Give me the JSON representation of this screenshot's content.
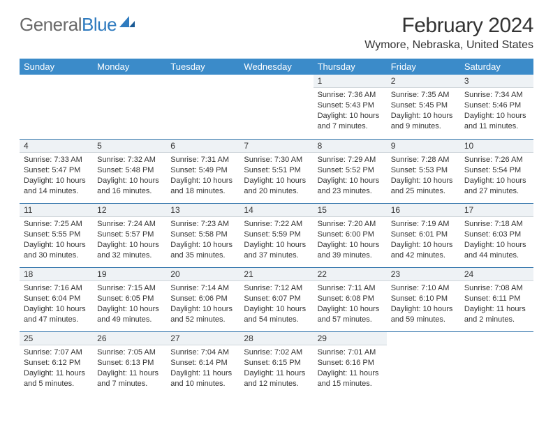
{
  "logo": {
    "gray": "General",
    "blue": "Blue"
  },
  "title": "February 2024",
  "subtitle": "Wymore, Nebraska, United States",
  "columns": [
    "Sunday",
    "Monday",
    "Tuesday",
    "Wednesday",
    "Thursday",
    "Friday",
    "Saturday"
  ],
  "colors": {
    "header_bg": "#3b8bc9",
    "header_text": "#ffffff",
    "daynum_bg": "#eef2f5",
    "rule": "#2a6fa8",
    "logo_gray": "#6a6a6a",
    "logo_blue": "#2f7bbf",
    "text": "#333333",
    "background": "#ffffff"
  },
  "weeks": [
    [
      null,
      null,
      null,
      null,
      {
        "n": "1",
        "sr": "7:36 AM",
        "ss": "5:43 PM",
        "dl1": "10 hours",
        "dl2": "and 7 minutes."
      },
      {
        "n": "2",
        "sr": "7:35 AM",
        "ss": "5:45 PM",
        "dl1": "10 hours",
        "dl2": "and 9 minutes."
      },
      {
        "n": "3",
        "sr": "7:34 AM",
        "ss": "5:46 PM",
        "dl1": "10 hours",
        "dl2": "and 11 minutes."
      }
    ],
    [
      {
        "n": "4",
        "sr": "7:33 AM",
        "ss": "5:47 PM",
        "dl1": "10 hours",
        "dl2": "and 14 minutes."
      },
      {
        "n": "5",
        "sr": "7:32 AM",
        "ss": "5:48 PM",
        "dl1": "10 hours",
        "dl2": "and 16 minutes."
      },
      {
        "n": "6",
        "sr": "7:31 AM",
        "ss": "5:49 PM",
        "dl1": "10 hours",
        "dl2": "and 18 minutes."
      },
      {
        "n": "7",
        "sr": "7:30 AM",
        "ss": "5:51 PM",
        "dl1": "10 hours",
        "dl2": "and 20 minutes."
      },
      {
        "n": "8",
        "sr": "7:29 AM",
        "ss": "5:52 PM",
        "dl1": "10 hours",
        "dl2": "and 23 minutes."
      },
      {
        "n": "9",
        "sr": "7:28 AM",
        "ss": "5:53 PM",
        "dl1": "10 hours",
        "dl2": "and 25 minutes."
      },
      {
        "n": "10",
        "sr": "7:26 AM",
        "ss": "5:54 PM",
        "dl1": "10 hours",
        "dl2": "and 27 minutes."
      }
    ],
    [
      {
        "n": "11",
        "sr": "7:25 AM",
        "ss": "5:55 PM",
        "dl1": "10 hours",
        "dl2": "and 30 minutes."
      },
      {
        "n": "12",
        "sr": "7:24 AM",
        "ss": "5:57 PM",
        "dl1": "10 hours",
        "dl2": "and 32 minutes."
      },
      {
        "n": "13",
        "sr": "7:23 AM",
        "ss": "5:58 PM",
        "dl1": "10 hours",
        "dl2": "and 35 minutes."
      },
      {
        "n": "14",
        "sr": "7:22 AM",
        "ss": "5:59 PM",
        "dl1": "10 hours",
        "dl2": "and 37 minutes."
      },
      {
        "n": "15",
        "sr": "7:20 AM",
        "ss": "6:00 PM",
        "dl1": "10 hours",
        "dl2": "and 39 minutes."
      },
      {
        "n": "16",
        "sr": "7:19 AM",
        "ss": "6:01 PM",
        "dl1": "10 hours",
        "dl2": "and 42 minutes."
      },
      {
        "n": "17",
        "sr": "7:18 AM",
        "ss": "6:03 PM",
        "dl1": "10 hours",
        "dl2": "and 44 minutes."
      }
    ],
    [
      {
        "n": "18",
        "sr": "7:16 AM",
        "ss": "6:04 PM",
        "dl1": "10 hours",
        "dl2": "and 47 minutes."
      },
      {
        "n": "19",
        "sr": "7:15 AM",
        "ss": "6:05 PM",
        "dl1": "10 hours",
        "dl2": "and 49 minutes."
      },
      {
        "n": "20",
        "sr": "7:14 AM",
        "ss": "6:06 PM",
        "dl1": "10 hours",
        "dl2": "and 52 minutes."
      },
      {
        "n": "21",
        "sr": "7:12 AM",
        "ss": "6:07 PM",
        "dl1": "10 hours",
        "dl2": "and 54 minutes."
      },
      {
        "n": "22",
        "sr": "7:11 AM",
        "ss": "6:08 PM",
        "dl1": "10 hours",
        "dl2": "and 57 minutes."
      },
      {
        "n": "23",
        "sr": "7:10 AM",
        "ss": "6:10 PM",
        "dl1": "10 hours",
        "dl2": "and 59 minutes."
      },
      {
        "n": "24",
        "sr": "7:08 AM",
        "ss": "6:11 PM",
        "dl1": "11 hours",
        "dl2": "and 2 minutes."
      }
    ],
    [
      {
        "n": "25",
        "sr": "7:07 AM",
        "ss": "6:12 PM",
        "dl1": "11 hours",
        "dl2": "and 5 minutes."
      },
      {
        "n": "26",
        "sr": "7:05 AM",
        "ss": "6:13 PM",
        "dl1": "11 hours",
        "dl2": "and 7 minutes."
      },
      {
        "n": "27",
        "sr": "7:04 AM",
        "ss": "6:14 PM",
        "dl1": "11 hours",
        "dl2": "and 10 minutes."
      },
      {
        "n": "28",
        "sr": "7:02 AM",
        "ss": "6:15 PM",
        "dl1": "11 hours",
        "dl2": "and 12 minutes."
      },
      {
        "n": "29",
        "sr": "7:01 AM",
        "ss": "6:16 PM",
        "dl1": "11 hours",
        "dl2": "and 15 minutes."
      },
      null,
      null
    ]
  ],
  "labels": {
    "sunrise": "Sunrise: ",
    "sunset": "Sunset: ",
    "daylight": "Daylight: "
  }
}
